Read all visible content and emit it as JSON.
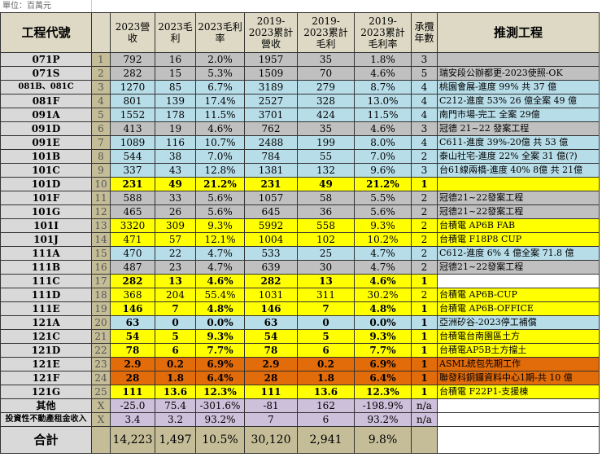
{
  "unit_label": "單位：百萬元",
  "colors": {
    "gray": "#c0c0c0",
    "blue": "#b7dde8",
    "yellow": "#ffff00",
    "orange": "#e26b0a",
    "lavender": "#ccc0da",
    "white": "#ffffff"
  },
  "headers": [
    "工程代號",
    "",
    "2023營收",
    "2023毛利",
    "2023毛利率",
    "2019-2023累計營收",
    "2019-2023累計毛利",
    "2019-2023累計毛利率",
    "承攬年數",
    "推測工程"
  ],
  "rows": [
    {
      "code": "071P",
      "idx": "1",
      "rev": "792",
      "gp": "16",
      "gm": "2.0%",
      "crev": "1957",
      "cgp": "35",
      "cgm": "1.8%",
      "yrs": "3",
      "note": "",
      "color": "gray",
      "bold": false,
      "note_color": "gray"
    },
    {
      "code": "071S",
      "idx": "2",
      "rev": "282",
      "gp": "15",
      "gm": "5.3%",
      "crev": "1509",
      "cgp": "70",
      "cgm": "4.6%",
      "yrs": "5",
      "note": "瑞安段公辦都更-2023使照-OK",
      "color": "gray",
      "bold": false,
      "note_color": "gray"
    },
    {
      "code": "081B、081C",
      "idx": "3",
      "rev": "1270",
      "gp": "85",
      "gm": "6.7%",
      "crev": "3189",
      "cgp": "279",
      "cgm": "8.7%",
      "yrs": "4",
      "note": "桃園會展-進度 99% 共 37 億",
      "color": "blue",
      "bold": false,
      "note_color": "blue"
    },
    {
      "code": "081F",
      "idx": "4",
      "rev": "801",
      "gp": "139",
      "gm": "17.4%",
      "crev": "2527",
      "cgp": "328",
      "cgm": "13.0%",
      "yrs": "4",
      "note": "C212-進度 53% 26 億全案 49 億",
      "color": "blue",
      "bold": false,
      "note_color": "blue"
    },
    {
      "code": "091A",
      "idx": "5",
      "rev": "1552",
      "gp": "178",
      "gm": "11.5%",
      "crev": "3701",
      "cgp": "424",
      "cgm": "11.5%",
      "yrs": "4",
      "note": "南門市場-完工 全案 29億",
      "color": "blue",
      "bold": false,
      "note_color": "blue"
    },
    {
      "code": "091D",
      "idx": "6",
      "rev": "413",
      "gp": "19",
      "gm": "4.6%",
      "crev": "762",
      "cgp": "35",
      "cgm": "4.6%",
      "yrs": "3",
      "note": "冠德 21~22 發案工程",
      "color": "gray",
      "bold": false,
      "note_color": "gray"
    },
    {
      "code": "091E",
      "idx": "7",
      "rev": "1089",
      "gp": "116",
      "gm": "10.7%",
      "crev": "2488",
      "cgp": "199",
      "cgm": "8.0%",
      "yrs": "4",
      "note": "C611-進度 39%-20億 共 53 億",
      "color": "blue",
      "bold": false,
      "note_color": "blue"
    },
    {
      "code": "101B",
      "idx": "8",
      "rev": "544",
      "gp": "38",
      "gm": "7.0%",
      "crev": "784",
      "cgp": "55",
      "cgm": "7.0%",
      "yrs": "2",
      "note": "泰山社宅-進度 22% 全案 31 億(?)",
      "color": "blue",
      "bold": false,
      "note_color": "blue"
    },
    {
      "code": "101C",
      "idx": "9",
      "rev": "337",
      "gp": "43",
      "gm": "12.8%",
      "crev": "1381",
      "cgp": "132",
      "cgm": "9.6%",
      "yrs": "3",
      "note": "台61線兩橋-進度 40% 8億 共 21億",
      "color": "blue",
      "bold": false,
      "note_color": "blue"
    },
    {
      "code": "101D",
      "idx": "10",
      "rev": "231",
      "gp": "49",
      "gm": "21.2%",
      "crev": "231",
      "cgp": "49",
      "cgm": "21.2%",
      "yrs": "1",
      "note": "",
      "color": "yellow",
      "bold": true,
      "note_color": "yellow"
    },
    {
      "code": "101F",
      "idx": "11",
      "rev": "588",
      "gp": "33",
      "gm": "5.6%",
      "crev": "1057",
      "cgp": "58",
      "cgm": "5.5%",
      "yrs": "2",
      "note": "冠德21~22發案工程",
      "color": "gray",
      "bold": false,
      "note_color": "gray"
    },
    {
      "code": "101G",
      "idx": "12",
      "rev": "465",
      "gp": "26",
      "gm": "5.6%",
      "crev": "645",
      "cgp": "36",
      "cgm": "5.6%",
      "yrs": "2",
      "note": "冠德21~22發案工程",
      "color": "gray",
      "bold": false,
      "note_color": "gray"
    },
    {
      "code": "101I",
      "idx": "13",
      "rev": "3320",
      "gp": "309",
      "gm": "9.3%",
      "crev": "5992",
      "cgp": "558",
      "cgm": "9.3%",
      "yrs": "2",
      "note": "台積電 AP6B FAB",
      "color": "yellow",
      "bold": false,
      "note_color": "yellow"
    },
    {
      "code": "101J",
      "idx": "14",
      "rev": "471",
      "gp": "57",
      "gm": "12.1%",
      "crev": "1004",
      "cgp": "102",
      "cgm": "10.2%",
      "yrs": "2",
      "note": "台積電 F18P8 CUP",
      "color": "yellow",
      "bold": false,
      "note_color": "yellow"
    },
    {
      "code": "111A",
      "idx": "15",
      "rev": "470",
      "gp": "22",
      "gm": "4.7%",
      "crev": "533",
      "cgp": "25",
      "cgm": "4.7%",
      "yrs": "2",
      "note": "C612-進度 6% 4 億全案 71.8 億",
      "color": "blue",
      "bold": false,
      "note_color": "blue"
    },
    {
      "code": "111B",
      "idx": "16",
      "rev": "487",
      "gp": "23",
      "gm": "4.7%",
      "crev": "639",
      "cgp": "30",
      "cgm": "4.7%",
      "yrs": "2",
      "note": "冠德21~22發案工程",
      "color": "gray",
      "bold": false,
      "note_color": "gray"
    },
    {
      "code": "111C",
      "idx": "17",
      "rev": "282",
      "gp": "13",
      "gm": "4.6%",
      "crev": "282",
      "cgp": "13",
      "cgm": "4.6%",
      "yrs": "1",
      "note": "",
      "color": "yellow",
      "bold": true,
      "note_color": "white"
    },
    {
      "code": "111D",
      "idx": "18",
      "rev": "368",
      "gp": "204",
      "gm": "55.4%",
      "crev": "1031",
      "cgp": "311",
      "cgm": "30.2%",
      "yrs": "2",
      "note": "台積電 AP6B-CUP",
      "color": "yellow",
      "bold": false,
      "note_color": "yellow"
    },
    {
      "code": "111E",
      "idx": "19",
      "rev": "146",
      "gp": "7",
      "gm": "4.8%",
      "crev": "146",
      "cgp": "7",
      "cgm": "4.8%",
      "yrs": "1",
      "note": "台積電 AP6B-OFFICE",
      "color": "yellow",
      "bold": true,
      "note_color": "yellow"
    },
    {
      "code": "121A",
      "idx": "20",
      "rev": "63",
      "gp": "0",
      "gm": "0.0%",
      "crev": "63",
      "cgp": "0",
      "cgm": "0.0%",
      "yrs": "1",
      "note": "亞洲矽谷-2023停工補償",
      "color": "blue",
      "bold": true,
      "note_color": "blue"
    },
    {
      "code": "121C",
      "idx": "21",
      "rev": "54",
      "gp": "5",
      "gm": "9.3%",
      "crev": "54",
      "cgp": "5",
      "cgm": "9.3%",
      "yrs": "1",
      "note": "台積電台南園區土方",
      "color": "yellow",
      "bold": true,
      "note_color": "yellow"
    },
    {
      "code": "121D",
      "idx": "22",
      "rev": "78",
      "gp": "6",
      "gm": "7.7%",
      "crev": "78",
      "cgp": "6",
      "cgm": "7.7%",
      "yrs": "1",
      "note": "台積電AP5B土方擋土",
      "color": "yellow",
      "bold": true,
      "note_color": "yellow"
    },
    {
      "code": "121E",
      "idx": "23",
      "rev": "2.9",
      "gp": "0.2",
      "gm": "6.9%",
      "crev": "2.9",
      "cgp": "0.2",
      "cgm": "6.9%",
      "yrs": "1",
      "note": "ASML統包先期工作",
      "color": "orange",
      "bold": true,
      "note_color": "orange"
    },
    {
      "code": "121F",
      "idx": "24",
      "rev": "28",
      "gp": "1.8",
      "gm": "6.4%",
      "crev": "28",
      "cgp": "1.8",
      "cgm": "6.4%",
      "yrs": "1",
      "note": "聯發科銅鑼資料中心1期-共 10 億",
      "color": "orange",
      "bold": true,
      "note_color": "orange"
    },
    {
      "code": "121G",
      "idx": "25",
      "rev": "111",
      "gp": "13.6",
      "gm": "12.3%",
      "crev": "111",
      "cgp": "13.6",
      "cgm": "12.3%",
      "yrs": "1",
      "note": "台積電 F22P1-支援棟",
      "color": "yellow",
      "bold": true,
      "note_color": "yellow"
    },
    {
      "code": "其他",
      "idx": "X",
      "rev": "-25.0",
      "gp": "75.4",
      "gm": "-301.6%",
      "crev": "-81",
      "cgp": "162",
      "cgm": "-198.9%",
      "yrs": "n/a",
      "note": "",
      "color": "lavender",
      "bold": false,
      "note_color": "white"
    },
    {
      "code": "投資性不動產租金收入",
      "idx": "X",
      "rev": "3.4",
      "gp": "3.2",
      "gm": "93.2%",
      "crev": "7",
      "cgp": "6",
      "cgm": "93.2%",
      "yrs": "n/a",
      "note": "",
      "color": "lavender",
      "bold": false,
      "note_color": "white"
    }
  ],
  "total": {
    "label": "合計",
    "rev": "14,223",
    "gp": "1,497",
    "gm": "10.5%",
    "crev": "30,120",
    "cgp": "2,941",
    "cgm": "9.8%"
  }
}
